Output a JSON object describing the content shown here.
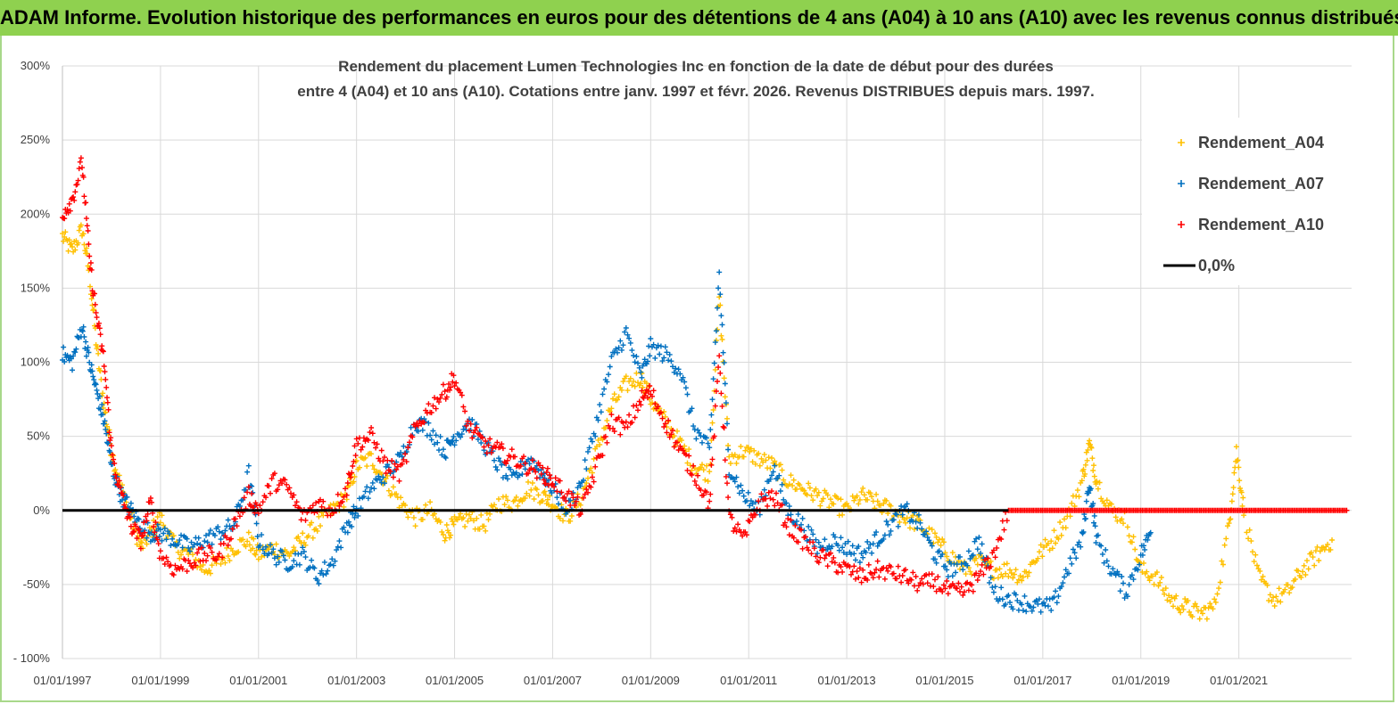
{
  "banner": {
    "title": "ADAM Informe. Evolution historique des performances en euros pour des détentions de 4 ans (A04) à 10 ans (A10) avec les revenus connus distribués"
  },
  "chart_data": {
    "type": "scatter",
    "title_lines": [
      "Rendement du placement Lumen Technologies Inc en fonction de la date de début pour des durées",
      "entre 4 (A04) et 10 ans (A10).  Cotations entre janv. 1997 et févr. 2026. Revenus  DISTRIBUES depuis mars. 1997."
    ],
    "x_axis": {
      "start_year": 1997.0,
      "end_year": 2023.3,
      "tick_years": [
        1997,
        1999,
        2001,
        2003,
        2005,
        2007,
        2009,
        2011,
        2013,
        2015,
        2017,
        2019,
        2021
      ],
      "tick_labels": [
        "01/01/1997",
        "01/01/1999",
        "01/01/2001",
        "01/01/2003",
        "01/01/2005",
        "01/01/2007",
        "01/01/2009",
        "01/01/2011",
        "01/01/2013",
        "01/01/2015",
        "01/01/2017",
        "01/01/2019",
        "01/01/2021"
      ]
    },
    "y_axis": {
      "min": -100,
      "max": 300,
      "step": 50,
      "tick_labels": [
        "- 100%",
        "-50%",
        "0%",
        "50%",
        "100%",
        "150%",
        "200%",
        "250%",
        "300%"
      ],
      "grid": true
    },
    "legend": {
      "position": "top-right",
      "entries": [
        "Rendement_A04",
        "Rendement_A07",
        "Rendement_A10",
        "0,0%"
      ]
    },
    "series": [
      {
        "name": "Rendement_A04",
        "color": "#ffc000",
        "marker": "+",
        "points": [
          [
            1997.0,
            185
          ],
          [
            1997.2,
            175
          ],
          [
            1997.4,
            190
          ],
          [
            1997.55,
            160
          ],
          [
            1997.7,
            110
          ],
          [
            1997.85,
            70
          ],
          [
            1998.0,
            40
          ],
          [
            1998.2,
            15
          ],
          [
            1998.4,
            -5
          ],
          [
            1998.6,
            -25
          ],
          [
            1998.8,
            -15
          ],
          [
            1999.0,
            -5
          ],
          [
            1999.3,
            -25
          ],
          [
            1999.6,
            -30
          ],
          [
            1999.9,
            -40
          ],
          [
            2000.2,
            -35
          ],
          [
            2000.5,
            -25
          ],
          [
            2000.8,
            -20
          ],
          [
            2001.0,
            -30
          ],
          [
            2001.3,
            -25
          ],
          [
            2001.6,
            -30
          ],
          [
            2001.9,
            -20
          ],
          [
            2002.2,
            -10
          ],
          [
            2002.5,
            0
          ],
          [
            2002.8,
            10
          ],
          [
            2003.0,
            30
          ],
          [
            2003.3,
            35
          ],
          [
            2003.6,
            20
          ],
          [
            2003.9,
            5
          ],
          [
            2004.2,
            -5
          ],
          [
            2004.5,
            0
          ],
          [
            2004.8,
            -15
          ],
          [
            2005.0,
            -10
          ],
          [
            2005.3,
            -5
          ],
          [
            2005.6,
            -10
          ],
          [
            2005.9,
            5
          ],
          [
            2006.2,
            5
          ],
          [
            2006.5,
            15
          ],
          [
            2006.8,
            10
          ],
          [
            2007.0,
            5
          ],
          [
            2007.3,
            -5
          ],
          [
            2007.6,
            10
          ],
          [
            2007.9,
            40
          ],
          [
            2008.2,
            70
          ],
          [
            2008.5,
            85
          ],
          [
            2008.8,
            90
          ],
          [
            2009.0,
            75
          ],
          [
            2009.3,
            60
          ],
          [
            2009.6,
            45
          ],
          [
            2009.9,
            30
          ],
          [
            2010.2,
            25
          ],
          [
            2010.4,
            145
          ],
          [
            2010.6,
            35
          ],
          [
            2010.9,
            40
          ],
          [
            2011.2,
            35
          ],
          [
            2011.5,
            30
          ],
          [
            2011.8,
            20
          ],
          [
            2012.1,
            15
          ],
          [
            2012.4,
            10
          ],
          [
            2012.7,
            5
          ],
          [
            2013.0,
            0
          ],
          [
            2013.3,
            10
          ],
          [
            2013.6,
            5
          ],
          [
            2013.9,
            0
          ],
          [
            2014.2,
            -5
          ],
          [
            2014.5,
            -10
          ],
          [
            2014.8,
            -20
          ],
          [
            2015.1,
            -30
          ],
          [
            2015.4,
            -40
          ],
          [
            2015.7,
            -35
          ],
          [
            2016.0,
            -40
          ],
          [
            2016.3,
            -40
          ],
          [
            2016.6,
            -45
          ],
          [
            2016.9,
            -30
          ],
          [
            2017.2,
            -20
          ],
          [
            2017.5,
            -5
          ],
          [
            2017.8,
            20
          ],
          [
            2017.95,
            45
          ],
          [
            2018.1,
            20
          ],
          [
            2018.4,
            0
          ],
          [
            2018.7,
            -5
          ],
          [
            2019.0,
            -40
          ],
          [
            2019.3,
            -45
          ],
          [
            2019.6,
            -60
          ],
          [
            2019.9,
            -65
          ],
          [
            2020.2,
            -70
          ],
          [
            2020.5,
            -65
          ],
          [
            2020.8,
            -10
          ],
          [
            2020.95,
            40
          ],
          [
            2021.1,
            0
          ],
          [
            2021.4,
            -45
          ],
          [
            2021.7,
            -60
          ],
          [
            2022.0,
            -55
          ],
          [
            2022.3,
            -40
          ],
          [
            2022.6,
            -30
          ],
          [
            2022.9,
            -20
          ]
        ]
      },
      {
        "name": "Rendement_A07",
        "color": "#0070c0",
        "marker": "+",
        "points": [
          [
            1997.0,
            105
          ],
          [
            1997.2,
            100
          ],
          [
            1997.4,
            125
          ],
          [
            1997.55,
            100
          ],
          [
            1997.7,
            80
          ],
          [
            1997.85,
            60
          ],
          [
            1998.0,
            30
          ],
          [
            1998.2,
            10
          ],
          [
            1998.4,
            0
          ],
          [
            1998.6,
            -10
          ],
          [
            1998.8,
            -15
          ],
          [
            1999.0,
            -15
          ],
          [
            1999.3,
            -20
          ],
          [
            1999.6,
            -25
          ],
          [
            1999.9,
            -20
          ],
          [
            2000.2,
            -15
          ],
          [
            2000.5,
            -10
          ],
          [
            2000.8,
            25
          ],
          [
            2001.0,
            -20
          ],
          [
            2001.3,
            -30
          ],
          [
            2001.6,
            -35
          ],
          [
            2001.9,
            -30
          ],
          [
            2002.2,
            -45
          ],
          [
            2002.5,
            -35
          ],
          [
            2002.8,
            -10
          ],
          [
            2003.0,
            0
          ],
          [
            2003.3,
            15
          ],
          [
            2003.6,
            25
          ],
          [
            2003.9,
            35
          ],
          [
            2004.2,
            60
          ],
          [
            2004.5,
            55
          ],
          [
            2004.8,
            40
          ],
          [
            2005.0,
            50
          ],
          [
            2005.3,
            60
          ],
          [
            2005.6,
            45
          ],
          [
            2005.9,
            30
          ],
          [
            2006.2,
            20
          ],
          [
            2006.5,
            35
          ],
          [
            2006.8,
            25
          ],
          [
            2007.0,
            15
          ],
          [
            2007.3,
            0
          ],
          [
            2007.6,
            20
          ],
          [
            2007.9,
            60
          ],
          [
            2008.2,
            100
          ],
          [
            2008.5,
            120
          ],
          [
            2008.8,
            90
          ],
          [
            2009.0,
            110
          ],
          [
            2009.3,
            105
          ],
          [
            2009.6,
            95
          ],
          [
            2009.9,
            55
          ],
          [
            2010.2,
            40
          ],
          [
            2010.4,
            160
          ],
          [
            2010.6,
            30
          ],
          [
            2010.9,
            10
          ],
          [
            2011.2,
            0
          ],
          [
            2011.5,
            30
          ],
          [
            2011.8,
            0
          ],
          [
            2012.1,
            -10
          ],
          [
            2012.4,
            -25
          ],
          [
            2012.7,
            -20
          ],
          [
            2013.0,
            -25
          ],
          [
            2013.3,
            -30
          ],
          [
            2013.6,
            -20
          ],
          [
            2013.9,
            -10
          ],
          [
            2014.2,
            0
          ],
          [
            2014.5,
            -10
          ],
          [
            2014.8,
            -30
          ],
          [
            2015.1,
            -40
          ],
          [
            2015.4,
            -35
          ],
          [
            2015.7,
            -20
          ],
          [
            2016.0,
            -55
          ],
          [
            2016.3,
            -60
          ],
          [
            2016.6,
            -62
          ],
          [
            2016.9,
            -65
          ],
          [
            2017.2,
            -65
          ],
          [
            2017.5,
            -40
          ],
          [
            2017.8,
            -20
          ],
          [
            2017.95,
            20
          ],
          [
            2018.1,
            -20
          ],
          [
            2018.4,
            -40
          ],
          [
            2018.7,
            -55
          ],
          [
            2019.0,
            -30
          ],
          [
            2019.2,
            -15
          ]
        ]
      },
      {
        "name": "Rendement_A10",
        "color": "#ff0000",
        "marker": "+",
        "points": [
          [
            1997.0,
            200
          ],
          [
            1997.2,
            210
          ],
          [
            1997.4,
            235
          ],
          [
            1997.55,
            170
          ],
          [
            1997.7,
            130
          ],
          [
            1997.85,
            100
          ],
          [
            1998.0,
            40
          ],
          [
            1998.2,
            10
          ],
          [
            1998.4,
            -10
          ],
          [
            1998.6,
            -20
          ],
          [
            1998.8,
            5
          ],
          [
            1999.0,
            -30
          ],
          [
            1999.3,
            -40
          ],
          [
            1999.6,
            -35
          ],
          [
            1999.9,
            -30
          ],
          [
            2000.2,
            -30
          ],
          [
            2000.5,
            -10
          ],
          [
            2000.8,
            10
          ],
          [
            2001.0,
            0
          ],
          [
            2001.3,
            20
          ],
          [
            2001.6,
            15
          ],
          [
            2001.9,
            -5
          ],
          [
            2002.2,
            5
          ],
          [
            2002.5,
            0
          ],
          [
            2002.8,
            15
          ],
          [
            2003.0,
            45
          ],
          [
            2003.3,
            50
          ],
          [
            2003.6,
            30
          ],
          [
            2003.9,
            25
          ],
          [
            2004.2,
            55
          ],
          [
            2004.5,
            70
          ],
          [
            2004.8,
            80
          ],
          [
            2005.0,
            90
          ],
          [
            2005.3,
            55
          ],
          [
            2005.6,
            45
          ],
          [
            2005.9,
            40
          ],
          [
            2006.2,
            35
          ],
          [
            2006.5,
            30
          ],
          [
            2006.8,
            25
          ],
          [
            2007.0,
            20
          ],
          [
            2007.3,
            10
          ],
          [
            2007.6,
            0
          ],
          [
            2007.9,
            30
          ],
          [
            2008.2,
            60
          ],
          [
            2008.5,
            55
          ],
          [
            2008.8,
            75
          ],
          [
            2009.0,
            80
          ],
          [
            2009.3,
            60
          ],
          [
            2009.6,
            40
          ],
          [
            2009.9,
            25
          ],
          [
            2010.2,
            5
          ],
          [
            2010.4,
            105
          ],
          [
            2010.6,
            -5
          ],
          [
            2010.9,
            -20
          ],
          [
            2011.2,
            5
          ],
          [
            2011.5,
            10
          ],
          [
            2011.8,
            -10
          ],
          [
            2012.1,
            -20
          ],
          [
            2012.4,
            -30
          ],
          [
            2012.7,
            -35
          ],
          [
            2013.0,
            -40
          ],
          [
            2013.3,
            -45
          ],
          [
            2013.6,
            -40
          ],
          [
            2013.9,
            -42
          ],
          [
            2014.2,
            -45
          ],
          [
            2014.5,
            -50
          ],
          [
            2014.8,
            -48
          ],
          [
            2015.1,
            -55
          ],
          [
            2015.4,
            -55
          ],
          [
            2015.7,
            -45
          ],
          [
            2016.0,
            -30
          ],
          [
            2016.3,
            0
          ],
          [
            2016.6,
            0
          ],
          [
            2016.9,
            0
          ],
          [
            2017.2,
            0
          ],
          [
            2017.5,
            0
          ],
          [
            2017.8,
            0
          ],
          [
            2018.1,
            0
          ],
          [
            2018.4,
            0
          ],
          [
            2018.7,
            0
          ],
          [
            2019.0,
            0
          ],
          [
            2019.3,
            0
          ],
          [
            2019.6,
            0
          ],
          [
            2019.9,
            0
          ],
          [
            2020.2,
            0
          ],
          [
            2020.5,
            0
          ],
          [
            2020.8,
            0
          ],
          [
            2021.1,
            0
          ],
          [
            2021.4,
            0
          ],
          [
            2021.7,
            0
          ],
          [
            2022.0,
            0
          ],
          [
            2022.3,
            0
          ],
          [
            2022.6,
            0
          ],
          [
            2022.9,
            0
          ],
          [
            2023.2,
            0
          ]
        ]
      }
    ],
    "reference_line": {
      "name": "0,0%",
      "value": 0,
      "color": "#000000",
      "x_start": 1997.0,
      "x_end": 2016.3
    }
  }
}
